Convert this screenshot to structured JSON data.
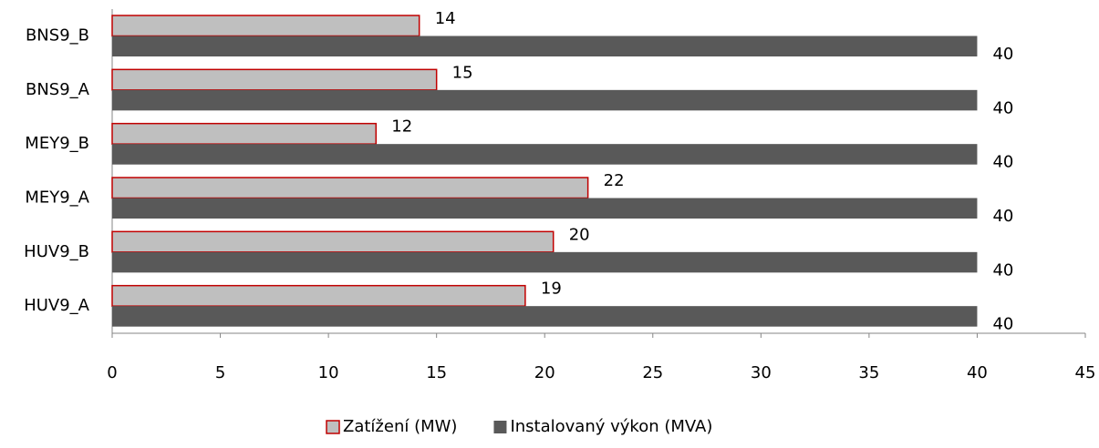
{
  "chart_data": {
    "type": "bar",
    "orientation": "horizontal",
    "categories": [
      "BNS9_B",
      "BNS9_A",
      "MEY9_B",
      "MEY9_A",
      "HUV9_B",
      "HUV9_A"
    ],
    "series": [
      {
        "name": "Zatížení (MW)",
        "color": "#bfbfbf",
        "edge_color": "#c00000",
        "values": [
          14.2,
          15.0,
          12.2,
          22.0,
          20.4,
          19.1
        ],
        "value_labels": [
          "14",
          "15",
          "12",
          "22",
          "20",
          "19"
        ]
      },
      {
        "name": "Instalovaný výkon (MVA)",
        "color": "#595959",
        "values": [
          40,
          40,
          40,
          40,
          40,
          40
        ]
      }
    ],
    "xlim": [
      0,
      45
    ],
    "xticks": [
      0,
      5,
      10,
      15,
      20,
      25,
      30,
      35,
      40,
      45
    ],
    "grid": false,
    "legend": "bottom"
  }
}
